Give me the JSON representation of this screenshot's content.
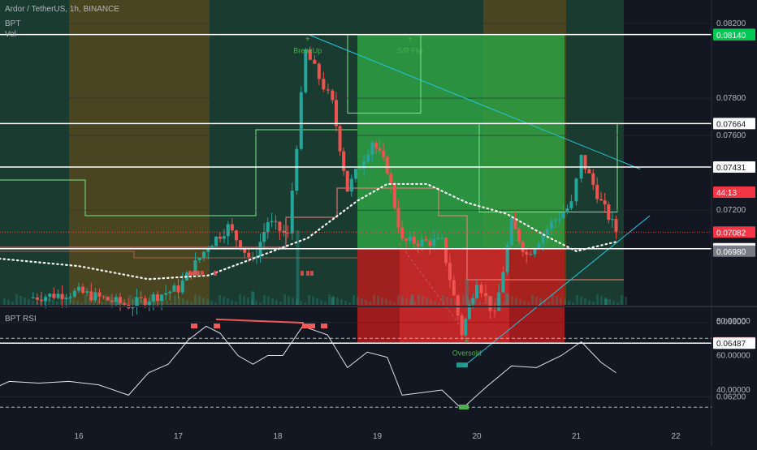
{
  "header": {
    "symbol_line": "Ardor / TetherUS, 1h, BINANCE",
    "indicator_1": "BPT",
    "indicator_2": "Vol"
  },
  "rsi_panel": {
    "label": "BPT RSI"
  },
  "colors": {
    "background": "#131722",
    "up": "#26a69a",
    "down": "#ef5350",
    "zone_green": "#1d4a35",
    "zone_yellow": "#5b5520",
    "zone_red": "#b71c1c",
    "zone_bright_green": "#2ea043",
    "trendline": "#26c6da"
  },
  "chart_data": [
    {
      "type": "candlestick",
      "x_tick_labels": [
        "16",
        "17",
        "18",
        "19",
        "20",
        "21",
        "22"
      ],
      "y_tick_labels": [
        "0.08200",
        "0.07800",
        "0.07600",
        "0.07200",
        "0.06600",
        "0.06200"
      ],
      "ylim": [
        0.0619,
        0.0825
      ],
      "price_labels": [
        {
          "value": 0.08141,
          "text": "0.08141",
          "style": "level"
        },
        {
          "value": 0.0814,
          "text": "0.08140",
          "style": "green"
        },
        {
          "value": 0.07664,
          "text": "0.07664",
          "style": "level"
        },
        {
          "value": 0.07431,
          "text": "0.07431",
          "style": "level"
        },
        {
          "value": 0.07082,
          "text": "0.07082",
          "style": "red"
        },
        {
          "value": 0.07,
          "text": "44:13",
          "style": "red"
        },
        {
          "value": 0.06993,
          "text": "0.06993",
          "style": "level"
        },
        {
          "value": 0.0698,
          "text": "0.06980",
          "style": "grey"
        },
        {
          "value": 0.06489,
          "text": "0.06489",
          "style": "red"
        },
        {
          "value": 0.06487,
          "text": "0.06487",
          "style": "level"
        }
      ],
      "horizontal_levels": [
        0.08141,
        0.07664,
        0.07431,
        0.06993,
        0.06487
      ],
      "annotations": [
        {
          "text": "BreakUp",
          "day": 18.3,
          "price": 0.0805,
          "color": "#4caf50"
        },
        {
          "text": "S/R Flip",
          "day": 19.33,
          "price": 0.0805,
          "color": "#4caf50"
        },
        {
          "text": "Oversold",
          "day": 19.9,
          "price": 0.0643,
          "color": "#4caf50"
        }
      ],
      "key_candles": [
        {
          "day": 15.5,
          "close": 0.0673
        },
        {
          "day": 16.0,
          "close": 0.0676
        },
        {
          "day": 16.5,
          "close": 0.0669
        },
        {
          "day": 17.0,
          "close": 0.0678
        },
        {
          "day": 17.3,
          "close": 0.0701
        },
        {
          "day": 17.5,
          "close": 0.0711
        },
        {
          "day": 17.75,
          "close": 0.0692
        },
        {
          "day": 17.9,
          "close": 0.0714
        },
        {
          "day": 18.1,
          "close": 0.0706
        },
        {
          "day": 18.28,
          "close": 0.0805
        },
        {
          "day": 18.55,
          "close": 0.0777
        },
        {
          "day": 18.7,
          "close": 0.0731
        },
        {
          "day": 18.95,
          "close": 0.0757
        },
        {
          "day": 19.1,
          "close": 0.0742
        },
        {
          "day": 19.25,
          "close": 0.0703
        },
        {
          "day": 19.65,
          "close": 0.0703
        },
        {
          "day": 19.85,
          "close": 0.0654
        },
        {
          "day": 20.0,
          "close": 0.0683
        },
        {
          "day": 20.18,
          "close": 0.0663
        },
        {
          "day": 20.35,
          "close": 0.0713
        },
        {
          "day": 20.5,
          "close": 0.0696
        },
        {
          "day": 20.75,
          "close": 0.0713
        },
        {
          "day": 20.95,
          "close": 0.0723
        },
        {
          "day": 21.05,
          "close": 0.0748
        },
        {
          "day": 21.25,
          "close": 0.0724
        },
        {
          "day": 21.4,
          "close": 0.0709
        }
      ],
      "indicator_dotted": [
        {
          "day": 15.2,
          "value": 0.0694
        },
        {
          "day": 16.0,
          "value": 0.069
        },
        {
          "day": 16.7,
          "value": 0.0683
        },
        {
          "day": 17.3,
          "value": 0.0685
        },
        {
          "day": 17.8,
          "value": 0.0695
        },
        {
          "day": 18.3,
          "value": 0.0705
        },
        {
          "day": 18.8,
          "value": 0.0725
        },
        {
          "day": 19.1,
          "value": 0.0734
        },
        {
          "day": 19.5,
          "value": 0.0734
        },
        {
          "day": 19.9,
          "value": 0.0724
        },
        {
          "day": 20.3,
          "value": 0.0718
        },
        {
          "day": 20.7,
          "value": 0.0706
        },
        {
          "day": 21.0,
          "value": 0.0698
        },
        {
          "day": 21.4,
          "value": 0.0703
        }
      ],
      "volume": [
        {
          "day": 18.2,
          "value": 100
        },
        {
          "day": 19.9,
          "value": 36
        },
        {
          "day": 17.75,
          "value": 18
        },
        {
          "day": 19.35,
          "value": 14
        },
        {
          "day": 20.3,
          "value": 16
        },
        {
          "day": 16.4,
          "value": 8
        },
        {
          "day": 18.55,
          "value": 10
        },
        {
          "day": 21.3,
          "value": 8
        }
      ]
    },
    {
      "type": "line",
      "title": "BPT RSI",
      "y_tick_labels": [
        "80.00000",
        "60.00000",
        "40.00000"
      ],
      "ylim": [
        26,
        90
      ],
      "guide_levels": [
        70,
        30
      ],
      "points": [
        {
          "day": 15.0,
          "value": 37
        },
        {
          "day": 15.3,
          "value": 45
        },
        {
          "day": 15.6,
          "value": 44
        },
        {
          "day": 15.9,
          "value": 45
        },
        {
          "day": 16.2,
          "value": 43
        },
        {
          "day": 16.5,
          "value": 37
        },
        {
          "day": 16.7,
          "value": 50
        },
        {
          "day": 16.9,
          "value": 55
        },
        {
          "day": 17.1,
          "value": 69
        },
        {
          "day": 17.28,
          "value": 77
        },
        {
          "day": 17.42,
          "value": 73
        },
        {
          "day": 17.6,
          "value": 60
        },
        {
          "day": 17.75,
          "value": 55
        },
        {
          "day": 17.9,
          "value": 60
        },
        {
          "day": 18.05,
          "value": 60
        },
        {
          "day": 18.25,
          "value": 77
        },
        {
          "day": 18.5,
          "value": 72
        },
        {
          "day": 18.7,
          "value": 53
        },
        {
          "day": 18.9,
          "value": 62
        },
        {
          "day": 19.1,
          "value": 59
        },
        {
          "day": 19.25,
          "value": 37
        },
        {
          "day": 19.65,
          "value": 40
        },
        {
          "day": 19.85,
          "value": 29
        },
        {
          "day": 20.1,
          "value": 42
        },
        {
          "day": 20.35,
          "value": 54
        },
        {
          "day": 20.6,
          "value": 53
        },
        {
          "day": 20.85,
          "value": 60
        },
        {
          "day": 21.05,
          "value": 68
        },
        {
          "day": 21.25,
          "value": 56
        },
        {
          "day": 21.4,
          "value": 50
        }
      ]
    }
  ]
}
